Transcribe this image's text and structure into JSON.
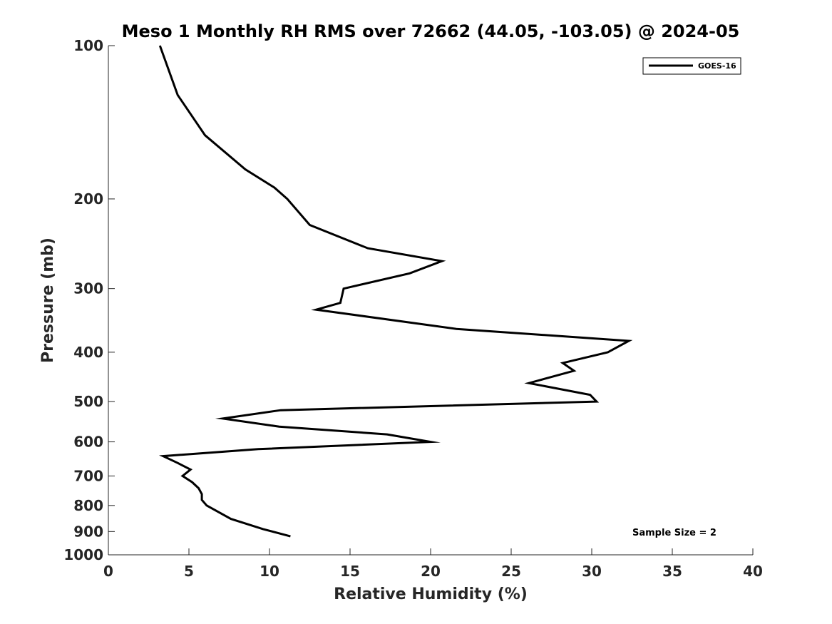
{
  "chart_data": {
    "type": "line",
    "title": "Meso 1 Monthly RH RMS over 72662 (44.05, -103.05) @ 2024-05",
    "xlabel": "Relative Humidity (%)",
    "ylabel": "Pressure (mb)",
    "xlim": [
      0,
      40
    ],
    "ylim": [
      100,
      1000
    ],
    "y_scale": "log",
    "y_reversed": true,
    "x_ticks": [
      0,
      5,
      10,
      15,
      20,
      25,
      30,
      35,
      40
    ],
    "y_ticks": [
      100,
      200,
      300,
      400,
      500,
      600,
      700,
      800,
      900,
      1000
    ],
    "grid": false,
    "legend_position": "top-right",
    "annotation": "Sample Size = 2",
    "series": [
      {
        "name": "GOES-16",
        "color": "#000000",
        "points": [
          {
            "x": 3.2,
            "y": 100
          },
          {
            "x": 4.3,
            "y": 125
          },
          {
            "x": 6.0,
            "y": 150
          },
          {
            "x": 8.5,
            "y": 175
          },
          {
            "x": 10.3,
            "y": 190
          },
          {
            "x": 11.1,
            "y": 200
          },
          {
            "x": 12.5,
            "y": 225
          },
          {
            "x": 16.1,
            "y": 250
          },
          {
            "x": 20.7,
            "y": 265
          },
          {
            "x": 18.7,
            "y": 280
          },
          {
            "x": 14.6,
            "y": 300
          },
          {
            "x": 14.4,
            "y": 320
          },
          {
            "x": 12.9,
            "y": 330
          },
          {
            "x": 21.6,
            "y": 360
          },
          {
            "x": 32.3,
            "y": 380
          },
          {
            "x": 31.0,
            "y": 400
          },
          {
            "x": 28.2,
            "y": 420
          },
          {
            "x": 28.9,
            "y": 435
          },
          {
            "x": 26.1,
            "y": 460
          },
          {
            "x": 29.9,
            "y": 485
          },
          {
            "x": 30.3,
            "y": 500
          },
          {
            "x": 10.7,
            "y": 520
          },
          {
            "x": 7.1,
            "y": 540
          },
          {
            "x": 10.6,
            "y": 560
          },
          {
            "x": 17.3,
            "y": 580
          },
          {
            "x": 20.0,
            "y": 600
          },
          {
            "x": 9.3,
            "y": 620
          },
          {
            "x": 3.4,
            "y": 640
          },
          {
            "x": 4.3,
            "y": 660
          },
          {
            "x": 5.1,
            "y": 680
          },
          {
            "x": 4.6,
            "y": 700
          },
          {
            "x": 5.2,
            "y": 720
          },
          {
            "x": 5.6,
            "y": 740
          },
          {
            "x": 5.8,
            "y": 760
          },
          {
            "x": 5.8,
            "y": 780
          },
          {
            "x": 6.1,
            "y": 800
          },
          {
            "x": 7.6,
            "y": 850
          },
          {
            "x": 9.6,
            "y": 890
          },
          {
            "x": 11.3,
            "y": 920
          }
        ]
      }
    ]
  }
}
